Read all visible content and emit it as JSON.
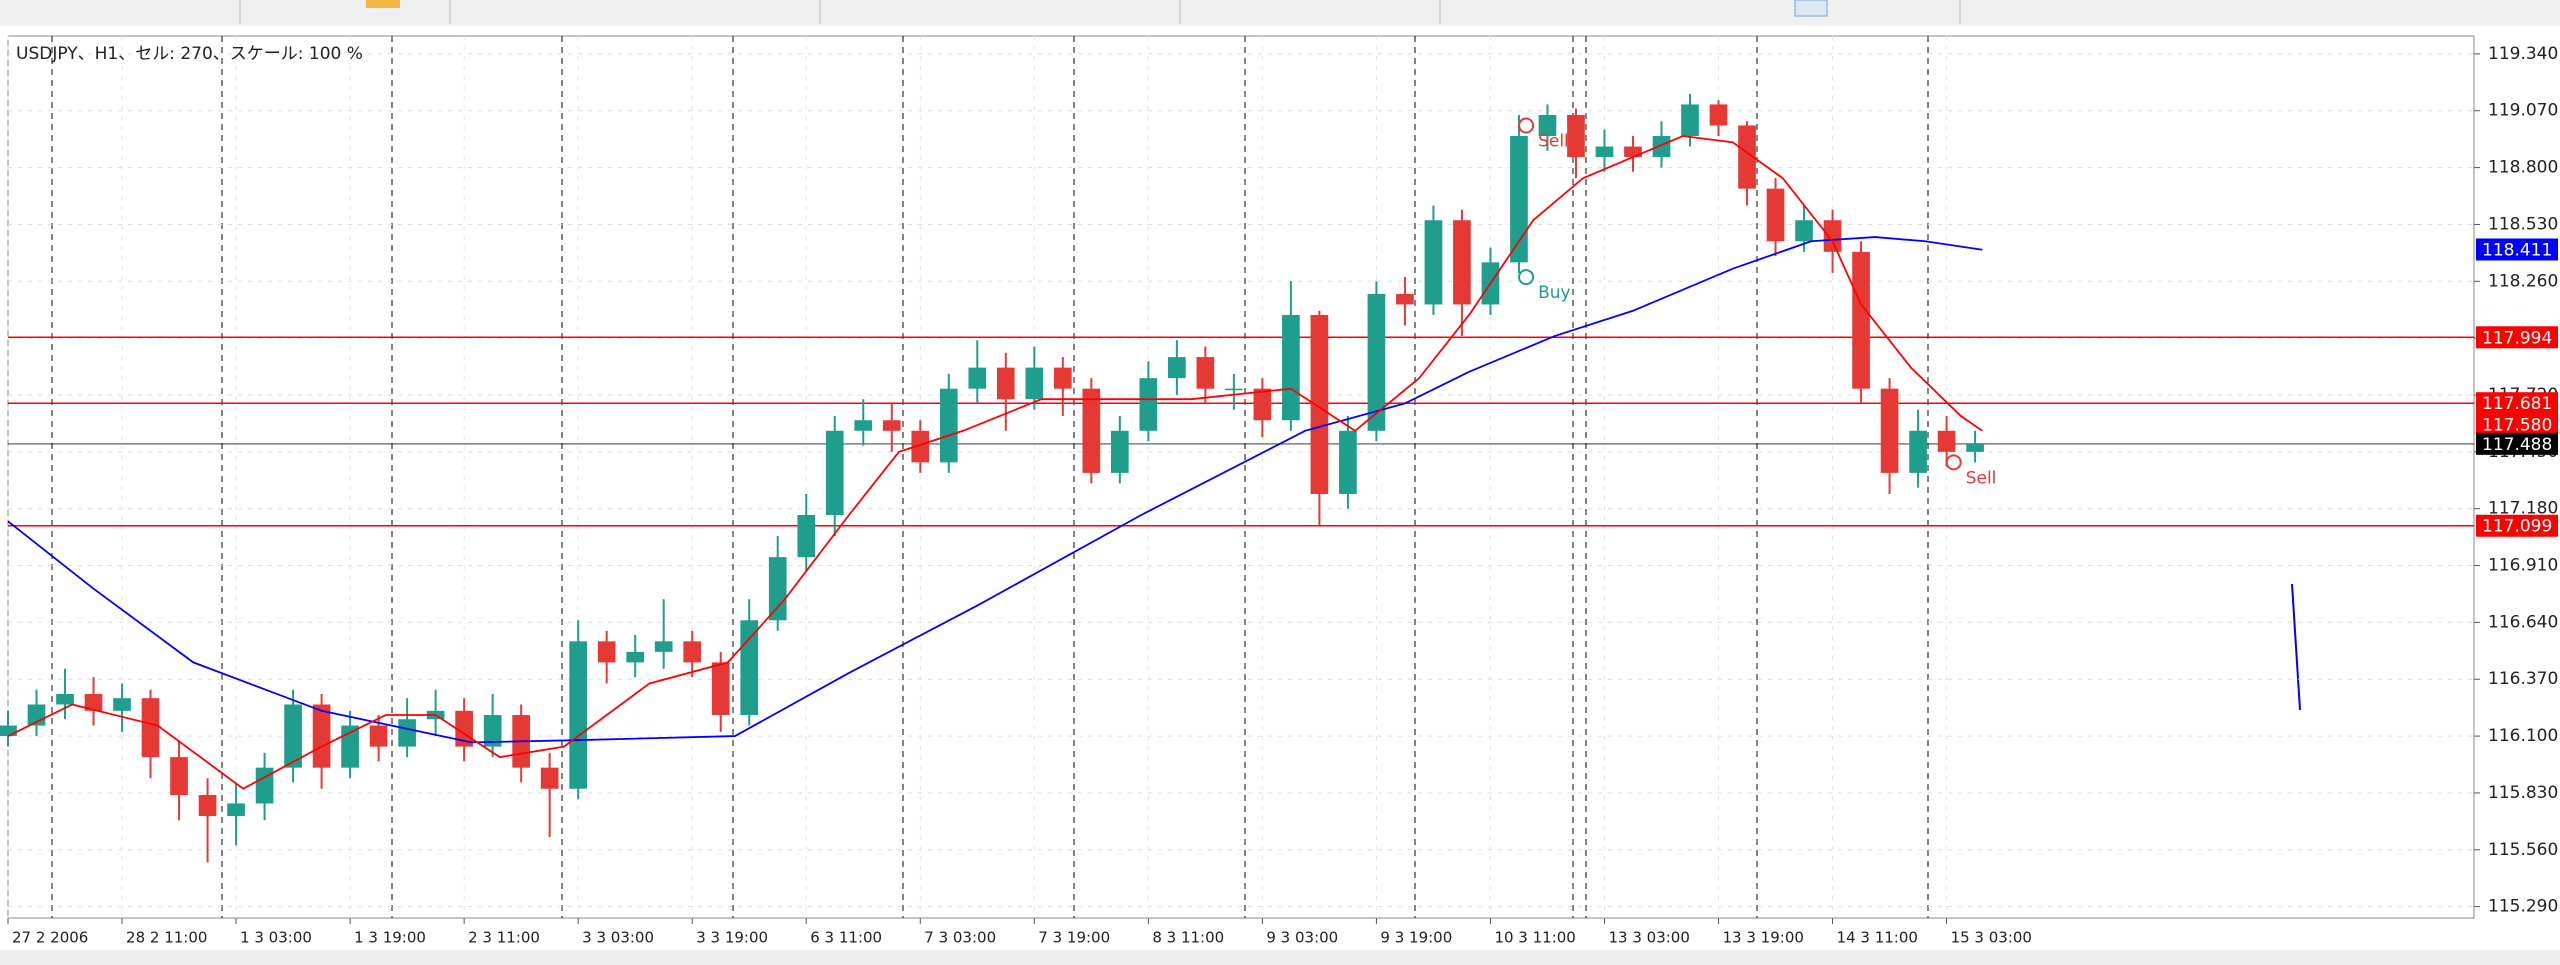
{
  "chart_data": {
    "type": "candlestick",
    "title": "USDJPY、H1、セル: 270、スケール: 100 %",
    "up_color": "#1f9e8e",
    "down_color": "#e53935",
    "grid": true,
    "xlim": [
      0,
      346
    ],
    "ylim": [
      115.236,
      119.425
    ],
    "x": [
      0,
      4,
      8,
      12,
      16,
      20,
      24,
      28,
      32,
      36,
      40,
      44,
      48,
      52,
      56,
      60,
      64,
      68,
      72,
      76,
      80,
      84,
      88,
      92,
      96,
      100,
      104,
      108,
      112,
      116,
      120,
      124,
      128,
      132,
      136,
      140,
      144,
      148,
      152,
      156,
      160,
      164,
      168,
      172,
      176,
      180,
      184,
      188,
      192,
      196,
      200,
      204,
      208,
      212,
      216,
      220,
      224,
      228,
      232,
      236,
      240,
      244,
      248,
      252,
      256,
      260,
      264,
      268,
      272,
      276
    ],
    "open": [
      116.1,
      116.15,
      116.25,
      116.3,
      116.22,
      116.28,
      116.0,
      115.82,
      115.72,
      115.78,
      115.95,
      116.25,
      115.95,
      116.15,
      116.05,
      116.18,
      116.22,
      116.05,
      116.2,
      115.95,
      115.85,
      116.55,
      116.45,
      116.5,
      116.55,
      116.45,
      116.2,
      116.65,
      116.95,
      117.15,
      117.55,
      117.6,
      117.55,
      117.4,
      117.75,
      117.85,
      117.7,
      117.85,
      117.75,
      117.35,
      117.55,
      117.8,
      117.9,
      117.75,
      117.75,
      117.6,
      118.1,
      117.25,
      117.55,
      118.2,
      118.15,
      118.55,
      118.15,
      118.35,
      118.95,
      119.05,
      118.85,
      118.9,
      118.85,
      118.95,
      119.1,
      119.0,
      118.7,
      118.45,
      118.55,
      118.4,
      117.75,
      117.35,
      117.55,
      117.45
    ],
    "high": [
      116.22,
      116.32,
      116.42,
      116.38,
      116.35,
      116.32,
      116.08,
      115.9,
      115.88,
      116.02,
      116.32,
      116.3,
      116.22,
      116.2,
      116.28,
      116.32,
      116.28,
      116.3,
      116.25,
      116.02,
      116.65,
      116.6,
      116.58,
      116.75,
      116.6,
      116.5,
      116.75,
      117.05,
      117.25,
      117.62,
      117.7,
      117.68,
      117.6,
      117.82,
      117.98,
      117.92,
      117.95,
      117.9,
      117.8,
      117.62,
      117.88,
      117.98,
      117.95,
      117.82,
      117.8,
      118.26,
      118.12,
      117.62,
      118.26,
      118.28,
      118.62,
      118.6,
      118.42,
      119.05,
      119.1,
      119.08,
      118.98,
      118.95,
      119.02,
      119.15,
      119.12,
      119.02,
      118.75,
      118.62,
      118.6,
      118.45,
      117.8,
      117.65,
      117.62,
      117.55
    ],
    "low": [
      116.05,
      116.1,
      116.18,
      116.15,
      116.12,
      115.9,
      115.7,
      115.5,
      115.58,
      115.7,
      115.88,
      115.85,
      115.9,
      115.98,
      116.0,
      116.1,
      115.98,
      116.0,
      115.88,
      115.62,
      115.8,
      116.35,
      116.38,
      116.42,
      116.38,
      116.12,
      116.15,
      116.6,
      116.88,
      117.05,
      117.48,
      117.45,
      117.35,
      117.35,
      117.68,
      117.55,
      117.65,
      117.62,
      117.3,
      117.3,
      117.5,
      117.72,
      117.68,
      117.65,
      117.52,
      117.55,
      117.1,
      117.18,
      117.5,
      118.05,
      118.1,
      118.0,
      118.1,
      118.3,
      118.88,
      118.75,
      118.78,
      118.78,
      118.8,
      118.9,
      118.95,
      118.62,
      118.38,
      118.4,
      118.3,
      117.68,
      117.25,
      117.28,
      117.38,
      117.4
    ],
    "close": [
      116.15,
      116.25,
      116.3,
      116.22,
      116.28,
      116.0,
      115.82,
      115.72,
      115.78,
      115.95,
      116.25,
      115.95,
      116.15,
      116.05,
      116.18,
      116.22,
      116.05,
      116.2,
      115.95,
      115.85,
      116.55,
      116.45,
      116.5,
      116.55,
      116.45,
      116.2,
      116.65,
      116.95,
      117.15,
      117.55,
      117.6,
      117.55,
      117.4,
      117.75,
      117.85,
      117.7,
      117.85,
      117.75,
      117.35,
      117.55,
      117.8,
      117.9,
      117.75,
      117.75,
      117.6,
      118.1,
      117.25,
      117.55,
      118.2,
      118.15,
      118.55,
      118.15,
      118.35,
      118.95,
      119.05,
      118.85,
      118.9,
      118.85,
      118.95,
      119.1,
      119.0,
      118.7,
      118.45,
      118.55,
      118.4,
      117.75,
      117.35,
      117.55,
      117.45,
      117.49
    ],
    "lines": [
      {
        "color": "#0000ff",
        "x": [
          0,
          12,
          26,
          44,
          65,
          79,
          102,
          118,
          136,
          159,
          182,
          196,
          205,
          217,
          228,
          242,
          253,
          262,
          269,
          277
        ],
        "values": [
          117.12,
          116.8,
          116.45,
          116.22,
          116.07,
          116.08,
          116.1,
          116.4,
          116.72,
          117.15,
          117.55,
          117.68,
          117.83,
          118.0,
          118.12,
          118.32,
          118.45,
          118.47,
          118.45,
          118.41
        ]
      },
      {
        "color": "#ff0000",
        "x": [
          0,
          9,
          21,
          33,
          44,
          53,
          60,
          69,
          78,
          90,
          101,
          109,
          118,
          125,
          134,
          145,
          155,
          166,
          180,
          189,
          198,
          205,
          214,
          221,
          228,
          235,
          242,
          249,
          256,
          260,
          267,
          274,
          277
        ],
        "values": [
          116.1,
          116.25,
          116.15,
          115.85,
          116.05,
          116.2,
          116.2,
          116.0,
          116.05,
          116.35,
          116.45,
          116.75,
          117.15,
          117.45,
          117.55,
          117.7,
          117.7,
          117.7,
          117.75,
          117.55,
          117.8,
          118.1,
          118.55,
          118.75,
          118.85,
          118.95,
          118.92,
          118.75,
          118.45,
          118.15,
          117.85,
          117.62,
          117.55
        ]
      }
    ],
    "levels": [
      {
        "value": 117.994,
        "color": "#ff0000",
        "line": true
      },
      {
        "value": 117.681,
        "color": "#ff0000",
        "line": true
      },
      {
        "value": 117.58,
        "label": "117.580",
        "color": "#ff0000",
        "line": false
      },
      {
        "value": 117.488,
        "color": "#000000",
        "line": true
      },
      {
        "value": 117.099,
        "color": "#ff0000",
        "line": true
      },
      {
        "value": 118.411,
        "color": "#0000ff",
        "line": false
      }
    ],
    "annotations": [
      {
        "text": "Sell",
        "x": 213,
        "y": 119.0,
        "color": "#e53935"
      },
      {
        "text": "Buy",
        "x": 213,
        "y": 118.28,
        "color": "#1f9e8e"
      },
      {
        "text": "Sell",
        "x": 273,
        "y": 117.4,
        "color": "#e53935"
      }
    ],
    "yticks": [
      {
        "value": 119.34,
        "label": "119.340"
      },
      {
        "value": 119.07,
        "label": "119.070"
      },
      {
        "value": 118.8,
        "label": "118.800"
      },
      {
        "value": 118.53,
        "label": "118.530"
      },
      {
        "value": 118.26,
        "label": "118.260"
      },
      {
        "value": 117.99,
        "label": "117.990"
      },
      {
        "value": 117.72,
        "label": "117.720"
      },
      {
        "value": 117.45,
        "label": "117.450"
      },
      {
        "value": 117.18,
        "label": "117.180"
      },
      {
        "value": 116.91,
        "label": "116.910"
      },
      {
        "value": 116.64,
        "label": "116.640"
      },
      {
        "value": 116.37,
        "label": "116.370"
      },
      {
        "value": 116.1,
        "label": "116.100"
      },
      {
        "value": 115.83,
        "label": "115.830"
      },
      {
        "value": 115.56,
        "label": "115.560"
      },
      {
        "value": 115.29,
        "label": "115.290"
      }
    ],
    "xticks": [
      {
        "value": 0,
        "label": "27 2 2006"
      },
      {
        "value": 16,
        "label": "28 2 11:00"
      },
      {
        "value": 32,
        "label": "1 3 03:00"
      },
      {
        "value": 48,
        "label": "1 3 19:00"
      },
      {
        "value": 64,
        "label": "2 3 11:00"
      },
      {
        "value": 80,
        "label": "3 3 03:00"
      },
      {
        "value": 96,
        "label": "3 3 19:00"
      },
      {
        "value": 112,
        "label": "6 3 11:00"
      },
      {
        "value": 128,
        "label": "7 3 03:00"
      },
      {
        "value": 144,
        "label": "7 3 19:00"
      },
      {
        "value": 160,
        "label": "8 3 11:00"
      },
      {
        "value": 176,
        "label": "9 3 03:00"
      },
      {
        "value": 192,
        "label": "9 3 19:00"
      },
      {
        "value": 208,
        "label": "10 3 11:00"
      },
      {
        "value": 224,
        "label": "13 3 03:00"
      },
      {
        "value": 240,
        "label": "13 3 19:00"
      },
      {
        "value": 256,
        "label": "14 3 11:00"
      },
      {
        "value": 272,
        "label": "15 3 03:00"
      }
    ]
  }
}
